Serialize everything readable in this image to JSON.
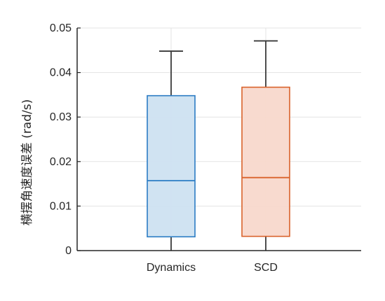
{
  "chart_data": {
    "type": "box",
    "title": "",
    "xlabel": "",
    "ylabel": "横摆角速度误差 (rad/s)",
    "ylim": [
      0,
      0.05
    ],
    "yticks": [
      0,
      0.01,
      0.02,
      0.03,
      0.04,
      0.05
    ],
    "ytick_labels": [
      "0",
      "0.01",
      "0.02",
      "0.03",
      "0.04",
      "0.05"
    ],
    "grid": true,
    "categories": [
      "Dynamics",
      "SCD"
    ],
    "boxes": [
      {
        "category": "Dynamics",
        "min": 0.0,
        "q1": 0.0031,
        "median": 0.0157,
        "q3": 0.0348,
        "max": 0.0448,
        "color": "#2b7cc4",
        "fill": "#cde2f1"
      },
      {
        "category": "SCD",
        "min": 0.0,
        "q1": 0.0032,
        "median": 0.0164,
        "q3": 0.0367,
        "max": 0.0471,
        "color": "#d9622b",
        "fill": "#f8d8cc"
      }
    ]
  }
}
